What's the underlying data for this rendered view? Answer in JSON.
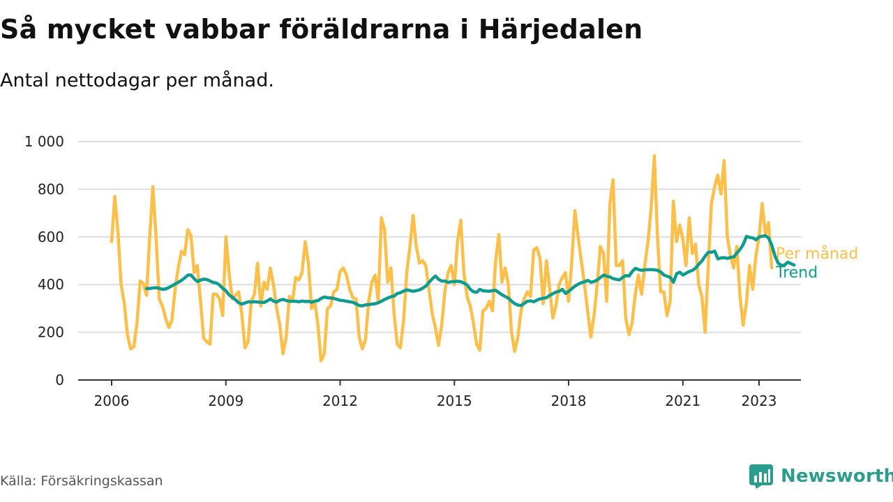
{
  "title": "Så mycket vabbar föräldrarna i Härjedalen",
  "subtitle": "Antal nettodagar per månad.",
  "source": "Källa: Försäkringskassan",
  "brand": "Newsworthy",
  "colors": {
    "monthly": "#FCBF49",
    "trend": "#0F9B8E",
    "grid": "#DDDDDD",
    "axis": "#333333",
    "brand": "#2A9D8F"
  },
  "chart_data": {
    "type": "line",
    "title": "Så mycket vabbar föräldrarna i Härjedalen",
    "subtitle": "Antal nettodagar per månad.",
    "xlabel": "",
    "ylabel": "",
    "ylim": [
      0,
      1000
    ],
    "xlim": [
      2005.85,
      2023.8
    ],
    "y_ticks": [
      0,
      200,
      400,
      600,
      800,
      1000
    ],
    "y_tick_labels": [
      "0",
      "200",
      "400",
      "600",
      "800",
      "1 000"
    ],
    "x_ticks": [
      2006,
      2009,
      2012,
      2015,
      2018,
      2021,
      2023
    ],
    "x_tick_labels": [
      "2006",
      "2009",
      "2012",
      "2015",
      "2018",
      "2021",
      "2023"
    ],
    "grid": true,
    "series": [
      {
        "name": "Per månad",
        "color": "#FCBF49",
        "start": 2006.0,
        "step": 0.08333,
        "values": [
          580,
          770,
          620,
          400,
          320,
          190,
          130,
          140,
          240,
          415,
          405,
          355,
          600,
          810,
          600,
          340,
          310,
          260,
          220,
          250,
          380,
          470,
          540,
          525,
          630,
          605,
          450,
          480,
          330,
          175,
          160,
          150,
          360,
          360,
          340,
          270,
          600,
          450,
          340,
          355,
          370,
          280,
          135,
          160,
          330,
          360,
          490,
          310,
          410,
          380,
          470,
          400,
          300,
          230,
          110,
          180,
          350,
          330,
          430,
          420,
          450,
          580,
          490,
          300,
          330,
          230,
          80,
          110,
          300,
          310,
          370,
          380,
          455,
          470,
          440,
          380,
          345,
          340,
          180,
          130,
          170,
          330,
          410,
          440,
          330,
          680,
          630,
          410,
          470,
          280,
          150,
          135,
          250,
          450,
          560,
          690,
          560,
          490,
          500,
          480,
          380,
          280,
          220,
          145,
          230,
          370,
          450,
          480,
          400,
          580,
          670,
          450,
          350,
          310,
          240,
          150,
          125,
          290,
          300,
          330,
          290,
          500,
          610,
          410,
          470,
          400,
          200,
          120,
          180,
          290,
          340,
          370,
          350,
          545,
          555,
          510,
          320,
          500,
          390,
          260,
          310,
          400,
          430,
          450,
          330,
          500,
          710,
          600,
          500,
          400,
          290,
          180,
          270,
          400,
          560,
          530,
          330,
          740,
          840,
          480,
          480,
          500,
          260,
          190,
          240,
          360,
          440,
          360,
          480,
          580,
          720,
          940,
          600,
          370,
          370,
          270,
          330,
          750,
          580,
          650,
          590,
          480,
          680,
          530,
          570,
          400,
          350,
          200,
          480,
          740,
          810,
          860,
          780,
          920,
          600,
          520,
          470,
          560,
          350,
          230,
          320,
          480,
          380,
          520,
          600,
          740,
          610,
          660,
          470
        ]
      },
      {
        "name": "Trend",
        "color": "#0F9B8E",
        "start": 2006.92,
        "step": 0.08333,
        "values": [
          383,
          384,
          386,
          387,
          384,
          380,
          382,
          388,
          395,
          403,
          410,
          418,
          428,
          440,
          440,
          424,
          413,
          419,
          423,
          421,
          415,
          409,
          407,
          398,
          384,
          374,
          356,
          347,
          336,
          324,
          318,
          323,
          328,
          327,
          328,
          327,
          326,
          325,
          332,
          340,
          330,
          327,
          335,
          338,
          333,
          330,
          330,
          330,
          328,
          331,
          329,
          330,
          326,
          331,
          333,
          342,
          348,
          345,
          344,
          342,
          338,
          334,
          333,
          330,
          328,
          326,
          319,
          312,
          311,
          315,
          316,
          318,
          320,
          324,
          330,
          338,
          344,
          349,
          352,
          363,
          366,
          373,
          378,
          375,
          372,
          375,
          378,
          385,
          394,
          410,
          424,
          436,
          422,
          415,
          415,
          409,
          412,
          413,
          414,
          412,
          406,
          398,
          380,
          370,
          368,
          380,
          374,
          373,
          372,
          375,
          376,
          366,
          357,
          350,
          343,
          330,
          320,
          314,
          312,
          322,
          330,
          332,
          328,
          335,
          340,
          343,
          345,
          355,
          362,
          369,
          372,
          380,
          363,
          372,
          383,
          394,
          402,
          408,
          412,
          418,
          410,
          413,
          420,
          430,
          440,
          435,
          432,
          425,
          422,
          420,
          430,
          438,
          436,
          455,
          468,
          463,
          460,
          462,
          463,
          463,
          462,
          460,
          453,
          440,
          435,
          430,
          410,
          446,
          452,
          440,
          448,
          455,
          460,
          470,
          486,
          500,
          520,
          536,
          536,
          540,
          508,
          512,
          513,
          510,
          514,
          516,
          533,
          548,
          569,
          602,
          598,
          596,
          588,
          600,
          603,
          605,
          595,
          565,
          520,
          490,
          480,
          482,
          494,
          488,
          482
        ]
      }
    ]
  }
}
